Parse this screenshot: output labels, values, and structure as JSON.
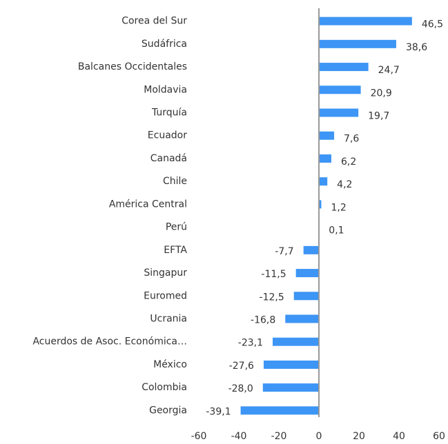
{
  "chart_data": {
    "type": "bar",
    "orientation": "horizontal",
    "categories": [
      "Corea del Sur",
      "Sudáfrica",
      "Balcanes Occidentales",
      "Moldavia",
      "Turquía",
      "Ecuador",
      "Canadá",
      "Chile",
      "América Central",
      "Perú",
      "EFTA",
      "Singapur",
      "Euromed",
      "Ucrania",
      "Acuerdos de Asoc. Económica…",
      "México",
      "Colombia",
      "Georgia"
    ],
    "values": [
      46.5,
      38.6,
      24.7,
      20.9,
      19.7,
      7.6,
      6.2,
      4.2,
      1.2,
      0.1,
      -7.7,
      -11.5,
      -12.5,
      -16.8,
      -23.1,
      -27.6,
      -28.0,
      -39.1
    ],
    "value_labels": [
      "46,5",
      "38,6",
      "24,7",
      "20,9",
      "19,7",
      "7,6",
      "6,2",
      "4,2",
      "1,2",
      "0,1",
      "-7,7",
      "-11,5",
      "-12,5",
      "-16,8",
      "-23,1",
      "-27,6",
      "-28,0",
      "-39,1"
    ],
    "color": "#3d95f5",
    "xlim": [
      -60,
      60
    ],
    "xticks": [
      -60,
      -40,
      -20,
      0,
      20,
      40,
      60
    ],
    "grid": false
  }
}
